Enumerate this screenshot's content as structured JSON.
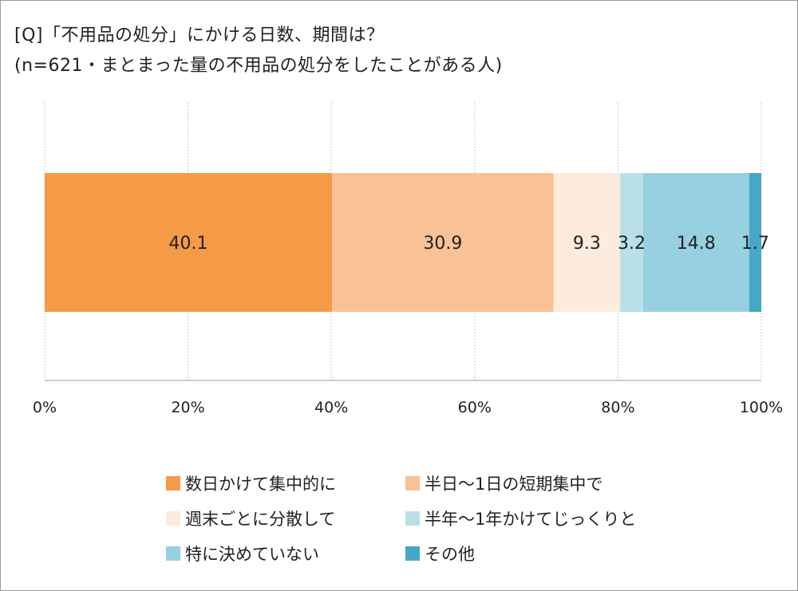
{
  "title": {
    "line1": "[Q]「不用品の処分」にかける日数、期間は？",
    "line2": "(n=621・まとまった量の不用品の処分をしたことがある人)"
  },
  "chart_data": {
    "type": "bar",
    "orientation": "horizontal",
    "stacked": true,
    "normalized": true,
    "xlim": [
      0,
      100
    ],
    "x_ticks": [
      {
        "value": 0,
        "label": "0%"
      },
      {
        "value": 20,
        "label": "20%"
      },
      {
        "value": 40,
        "label": "40%"
      },
      {
        "value": 60,
        "label": "60%"
      },
      {
        "value": 80,
        "label": "80%"
      },
      {
        "value": 100,
        "label": "100%"
      }
    ],
    "grid": true,
    "legend_position": "bottom",
    "series": [
      {
        "name": "数日かけて集中的に",
        "value": 40.1,
        "label": "40.1",
        "color": "#F59A47"
      },
      {
        "name": "半日～1日の短期集中で",
        "value": 30.9,
        "label": "30.9",
        "color": "#F9C196"
      },
      {
        "name": "週末ごとに分散して",
        "value": 9.3,
        "label": "9.3",
        "color": "#FDEBDD"
      },
      {
        "name": "半年～1年かけてじっくりと",
        "value": 3.2,
        "label": "3.2",
        "color": "#B9E0E8"
      },
      {
        "name": "特に決めていない",
        "value": 14.8,
        "label": "14.8",
        "color": "#97D0E0"
      },
      {
        "name": "その他",
        "value": 1.7,
        "label": "1.7",
        "color": "#46A8C6"
      }
    ]
  }
}
